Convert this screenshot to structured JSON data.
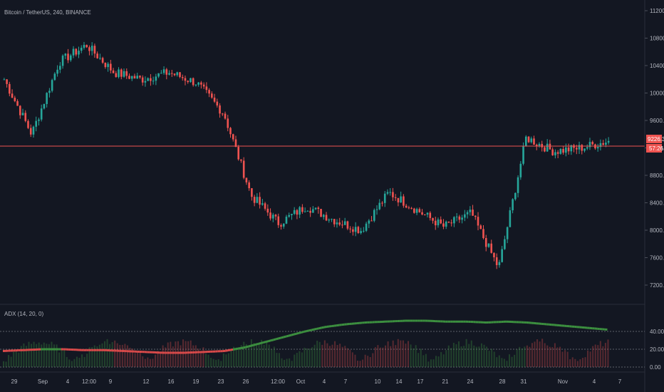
{
  "header": {
    "symbol_line": "Bitcoin / TetherUS, 240, BINANCE",
    "indicator_label": "ADX (14, 20, 0)"
  },
  "colors": {
    "background": "#131722",
    "up": "#26a69a",
    "down": "#ef5350",
    "adx_line": "#3c8f3f",
    "adx_low": "#d84a4a",
    "grid_line": "#2a2e39",
    "price_line": "#ef5350"
  },
  "price_axis": {
    "ticks": [
      "11200.00",
      "10800.00",
      "10400.00",
      "10000.00",
      "9600.00",
      "9200.00",
      "8800.00",
      "8400.00",
      "8000.00",
      "7600.00",
      "7200.00"
    ],
    "current_price_tag": "9226.34",
    "timer_tag": "57:26"
  },
  "adx_axis": {
    "ticks": [
      "40.00",
      "20.00",
      "0.00"
    ]
  },
  "time_axis": {
    "labels": [
      "29",
      "Sep",
      "4",
      "12:00",
      "9",
      "12",
      "16",
      "19",
      "23",
      "26",
      "12:00",
      "Oct",
      "4",
      "7",
      "10",
      "14",
      "17",
      "21",
      "24",
      "28",
      "31",
      "Nov",
      "4",
      "7"
    ]
  },
  "chart_data": [
    {
      "type": "candlestick",
      "title": "Bitcoin / TetherUS, 240, BINANCE",
      "ylim": [
        7000,
        11400
      ],
      "current_price": 9226.34,
      "key_levels_approx": [
        {
          "x": "29",
          "close": 10200
        },
        {
          "x": "Sep",
          "close": 9400
        },
        {
          "x": "4",
          "close": 10450
        },
        {
          "x": "12:00",
          "close": 10700
        },
        {
          "x": "9",
          "close": 10300
        },
        {
          "x": "12",
          "close": 10200
        },
        {
          "x": "16",
          "close": 10300
        },
        {
          "x": "19",
          "close": 10150
        },
        {
          "x": "23",
          "close": 9700
        },
        {
          "x": "26",
          "close": 8500
        },
        {
          "x": "12:00",
          "close": 8100
        },
        {
          "x": "Oct",
          "close": 8350
        },
        {
          "x": "4",
          "close": 8150
        },
        {
          "x": "7",
          "close": 8000
        },
        {
          "x": "10",
          "close": 8550
        },
        {
          "x": "14",
          "close": 8300
        },
        {
          "x": "17",
          "close": 8050
        },
        {
          "x": "21",
          "close": 8250
        },
        {
          "x": "24",
          "close": 7450
        },
        {
          "x": "28",
          "close": 9350
        },
        {
          "x": "31",
          "close": 9150
        },
        {
          "x": "Nov",
          "close": 9200
        },
        {
          "x": "4",
          "close": 9300
        }
      ]
    },
    {
      "type": "line",
      "title": "ADX (14, 20, 0)",
      "ylim": [
        0,
        60
      ],
      "threshold": 20,
      "series": [
        {
          "name": "ADX",
          "values": [
            18,
            19,
            20,
            20,
            19,
            19,
            18,
            17,
            16,
            16,
            17,
            18,
            22,
            28,
            34,
            40,
            45,
            48,
            50,
            51,
            52,
            52,
            51,
            51,
            50,
            51,
            50,
            48,
            46,
            44,
            42
          ]
        }
      ]
    }
  ]
}
